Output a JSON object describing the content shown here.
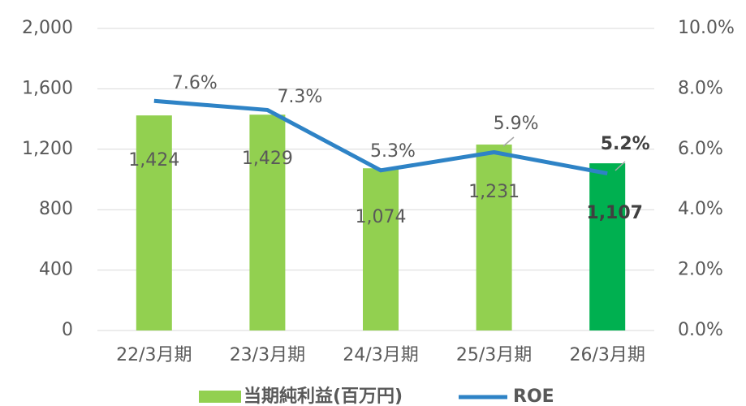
{
  "chart_data": {
    "type": "bar_line",
    "categories": [
      "22/3月期",
      "23/3月期",
      "24/3月期",
      "25/3月期",
      "26/3月期"
    ],
    "series": [
      {
        "name": "当期純利益(百万円)",
        "type": "bar",
        "color": "#92d050",
        "colors": [
          "#92d050",
          "#92d050",
          "#92d050",
          "#92d050",
          "#00b050"
        ],
        "values": [
          1424,
          1429,
          1074,
          1231,
          1107
        ],
        "value_labels": [
          "1,424",
          "1,429",
          "1,074",
          "1,231",
          "1,107"
        ]
      },
      {
        "name": "ROE",
        "type": "line",
        "axis": "y2",
        "color": "#2e83c6",
        "values": [
          7.6,
          7.3,
          5.3,
          5.9,
          5.2
        ],
        "value_labels": [
          "7.6%",
          "7.3%",
          "5.3%",
          "5.9%",
          "5.2%"
        ]
      }
    ],
    "ylim": [
      0,
      2000
    ],
    "yticks": [
      0,
      400,
      800,
      {
        "value": 1200,
        "label": "1,200"
      },
      {
        "value": 1600,
        "label": "1,600"
      },
      {
        "value": 2000,
        "label": "2,000"
      }
    ],
    "y2lim": [
      0,
      10
    ],
    "y2ticks": [
      {
        "value": 0,
        "label": "0.0%"
      },
      {
        "value": 2,
        "label": "2.0%"
      },
      {
        "value": 4,
        "label": "4.0%"
      },
      {
        "value": 6,
        "label": "6.0%"
      },
      {
        "value": 8,
        "label": "8.0%"
      },
      {
        "value": 10,
        "label": "10.0%"
      }
    ],
    "grid": true,
    "legend": "bottom"
  }
}
